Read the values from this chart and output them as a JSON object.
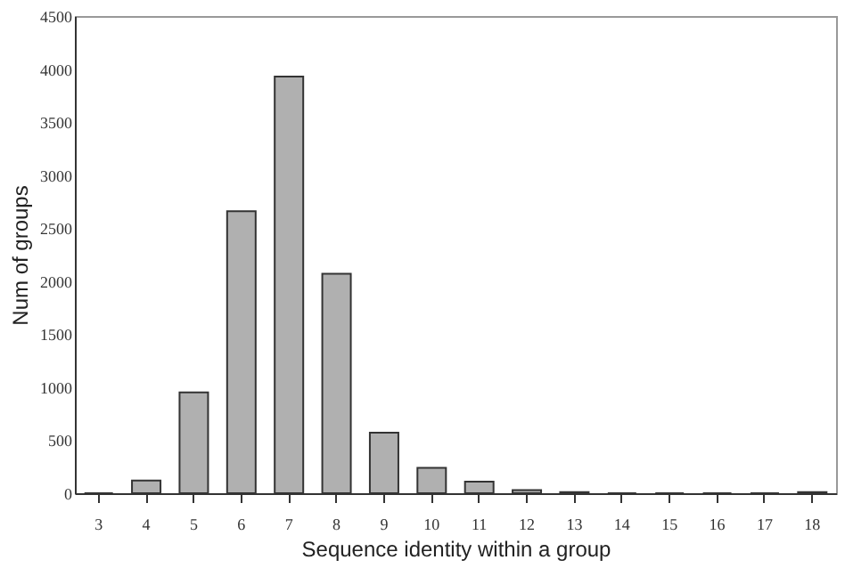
{
  "chart_data": {
    "type": "bar",
    "xlabel": "Sequence identity within a group",
    "ylabel": "Num of groups",
    "categories": [
      "3",
      "4",
      "5",
      "6",
      "7",
      "8",
      "9",
      "10",
      "11",
      "12",
      "13",
      "14",
      "15",
      "16",
      "17",
      "18"
    ],
    "values": [
      0,
      120,
      950,
      2660,
      3930,
      2070,
      570,
      240,
      110,
      30,
      10,
      0,
      0,
      0,
      0,
      10
    ],
    "color": "#b0b0b0",
    "ylim": [
      0,
      4500
    ],
    "yticks": [
      0,
      500,
      1000,
      1500,
      2000,
      2500,
      3000,
      3500,
      4000,
      4500
    ],
    "grid": false
  }
}
